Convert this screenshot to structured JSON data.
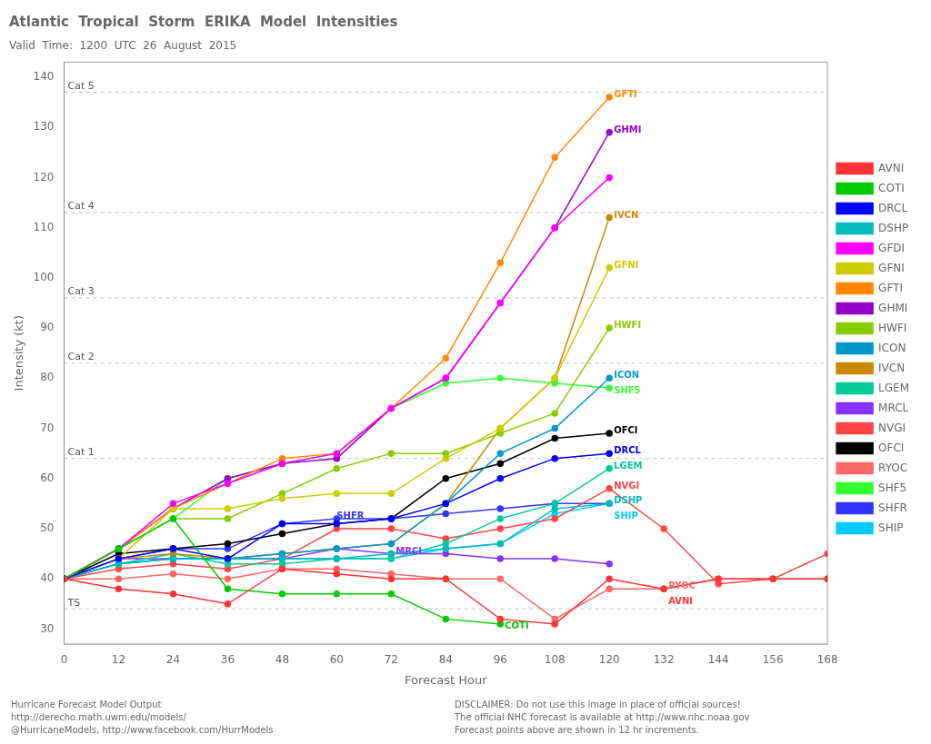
{
  "chart_data": {
    "type": "line",
    "title": "Atlantic  Tropical  Storm  ERIKA  Model  Intensities",
    "subtitle": "Valid  Time:  1200  UTC  26  August  2015",
    "xlabel": "Forecast Hour",
    "ylabel": "Intensity (kt)",
    "x": [
      0,
      12,
      24,
      36,
      48,
      60,
      72,
      84,
      96,
      108,
      120,
      132,
      144,
      156,
      168
    ],
    "xlim": [
      0,
      168
    ],
    "xticks": [
      0,
      12,
      24,
      36,
      48,
      60,
      72,
      84,
      96,
      108,
      120,
      132,
      144,
      156,
      168
    ],
    "ylim": [
      27,
      143
    ],
    "yticks": [
      30,
      40,
      50,
      60,
      70,
      80,
      90,
      100,
      110,
      120,
      130,
      140
    ],
    "grid": false,
    "legend": "right",
    "marker": "circle",
    "series": [
      {
        "name": "AVNI",
        "color": "#ff3333",
        "values": [
          40,
          38,
          37,
          35,
          42,
          41,
          40,
          40,
          32,
          31,
          40,
          38,
          40,
          40,
          40
        ]
      },
      {
        "name": "COTI",
        "color": "#00cc00",
        "values": [
          40,
          46,
          52,
          38,
          37,
          37,
          37,
          32,
          31,
          null,
          null,
          null,
          null,
          null,
          null
        ]
      },
      {
        "name": "DRCL",
        "color": "#0000ff",
        "values": [
          40,
          44,
          46,
          44,
          51,
          51,
          52,
          55,
          60,
          64,
          65,
          null,
          null,
          null,
          null
        ]
      },
      {
        "name": "DSHP",
        "color": "#00bbbb",
        "values": [
          40,
          43,
          44,
          44,
          44,
          44,
          45,
          46,
          47,
          54,
          55,
          null,
          null,
          null,
          null
        ]
      },
      {
        "name": "GFDI",
        "color": "#ff00ff",
        "values": [
          40,
          46,
          55,
          59,
          63,
          65,
          74,
          80,
          95,
          110,
          120,
          null,
          null,
          null,
          null
        ]
      },
      {
        "name": "GFNI",
        "color": "#cccc00",
        "values": [
          40,
          44,
          54,
          54,
          56,
          57,
          57,
          64,
          70,
          80,
          102,
          null,
          null,
          null,
          null
        ]
      },
      {
        "name": "GFTI",
        "color": "#ff8800",
        "values": [
          40,
          46,
          54,
          59,
          64,
          65,
          74,
          84,
          103,
          124,
          136,
          null,
          null,
          null,
          null
        ]
      },
      {
        "name": "GHMI",
        "color": "#9900cc",
        "values": [
          40,
          46,
          54,
          60,
          63,
          64,
          74,
          80,
          95,
          110,
          129,
          null,
          null,
          null,
          null
        ]
      },
      {
        "name": "HWFI",
        "color": "#88cc00",
        "values": [
          40,
          46,
          52,
          52,
          57,
          62,
          65,
          65,
          69,
          73,
          90,
          null,
          null,
          null,
          null
        ]
      },
      {
        "name": "ICON",
        "color": "#0099cc",
        "values": [
          40,
          43,
          44,
          44,
          45,
          46,
          47,
          55,
          65,
          70,
          80,
          null,
          null,
          null,
          null
        ]
      },
      {
        "name": "IVCN",
        "color": "#cc8800",
        "values": [
          40,
          44,
          45,
          44,
          45,
          46,
          47,
          55,
          70,
          80,
          112,
          null,
          null,
          null,
          null
        ]
      },
      {
        "name": "LGEM",
        "color": "#00cc99",
        "values": [
          40,
          43,
          45,
          43,
          43,
          44,
          44,
          47,
          52,
          55,
          62,
          null,
          null,
          null,
          null
        ]
      },
      {
        "name": "MRCL",
        "color": "#8833ff",
        "values": [
          40,
          44,
          44,
          44,
          44,
          46,
          45,
          45,
          44,
          44,
          43,
          null,
          null,
          null,
          null
        ]
      },
      {
        "name": "NVGI",
        "color": "#ff4444",
        "values": [
          40,
          42,
          43,
          42,
          44,
          50,
          50,
          48,
          50,
          52,
          58,
          50,
          39,
          40,
          45
        ]
      },
      {
        "name": "OFCI",
        "color": "#000000",
        "values": [
          40,
          45,
          46,
          47,
          49,
          51,
          52,
          60,
          63,
          68,
          69,
          null,
          null,
          null,
          null
        ]
      },
      {
        "name": "RYOC",
        "color": "#ff6666",
        "values": [
          40,
          40,
          41,
          40,
          42,
          42,
          41,
          40,
          40,
          32,
          38,
          38,
          40,
          40,
          40
        ]
      },
      {
        "name": "SHF5",
        "color": "#33ff33",
        "values": [
          40,
          46,
          52,
          60,
          63,
          65,
          74,
          79,
          80,
          79,
          78,
          null,
          null,
          null,
          null
        ]
      },
      {
        "name": "SHFR",
        "color": "#3333ff",
        "values": [
          40,
          44,
          46,
          46,
          51,
          52,
          52,
          53,
          54,
          55,
          55,
          null,
          null,
          null,
          null
        ]
      },
      {
        "name": "SHIP",
        "color": "#00ccff",
        "values": [
          40,
          43,
          44,
          44,
          44,
          44,
          44,
          46,
          47,
          53,
          55,
          null,
          null,
          null,
          null
        ]
      }
    ],
    "category_levels": [
      {
        "label": "TS",
        "value": 34
      },
      {
        "label": "Cat 1",
        "value": 64
      },
      {
        "label": "Cat 2",
        "value": 83
      },
      {
        "label": "Cat 3",
        "value": 96
      },
      {
        "label": "Cat 4",
        "value": 113
      },
      {
        "label": "Cat 5",
        "value": 137
      }
    ],
    "annotations": [
      {
        "text": "GFTI",
        "x": 121,
        "y": 136,
        "series": "GFTI"
      },
      {
        "text": "GHMI",
        "x": 121,
        "y": 129,
        "series": "GHMI"
      },
      {
        "text": "IVCN",
        "x": 121,
        "y": 112,
        "series": "IVCN"
      },
      {
        "text": "GFNI",
        "x": 121,
        "y": 102,
        "series": "GFNI"
      },
      {
        "text": "HWFI",
        "x": 121,
        "y": 90,
        "series": "HWFI"
      },
      {
        "text": "ICON",
        "x": 121,
        "y": 80,
        "series": "ICON"
      },
      {
        "text": "SHF5",
        "x": 121,
        "y": 77,
        "series": "SHF5"
      },
      {
        "text": "OFCI",
        "x": 121,
        "y": 69,
        "series": "OFCI"
      },
      {
        "text": "DRCL",
        "x": 121,
        "y": 65,
        "series": "DRCL"
      },
      {
        "text": "LGEM",
        "x": 121,
        "y": 62,
        "series": "LGEM"
      },
      {
        "text": "DSHP",
        "x": 121,
        "y": 55,
        "series": "DSHP"
      },
      {
        "text": "SHIP",
        "x": 121,
        "y": 52,
        "series": "SHIP"
      },
      {
        "text": "MRCL",
        "x": 73,
        "y": 45,
        "series": "MRCL"
      },
      {
        "text": "SHFR",
        "x": 60,
        "y": 52,
        "series": "SHFR"
      },
      {
        "text": "NVGI",
        "x": 121,
        "y": 58,
        "series": "NVGI"
      },
      {
        "text": "RYOC",
        "x": 133,
        "y": 38,
        "series": "RYOC"
      },
      {
        "text": "AVNI",
        "x": 133,
        "y": 35,
        "series": "AVNI"
      },
      {
        "text": "COTI",
        "x": 97,
        "y": 30,
        "series": "COTI"
      }
    ],
    "footer_left": "Hurricane Forecast Model Output\nhttp://derecho.math.uwm.edu/models/\n@HurricaneModels, http://www.facebook.com/HurrModels",
    "footer_right": "DISCLAIMER: Do not use this image in place of official sources!\nThe official NHC forecast is available at http://www.nhc.noaa.gov\nForecast points above are shown in 12 hr increments."
  }
}
